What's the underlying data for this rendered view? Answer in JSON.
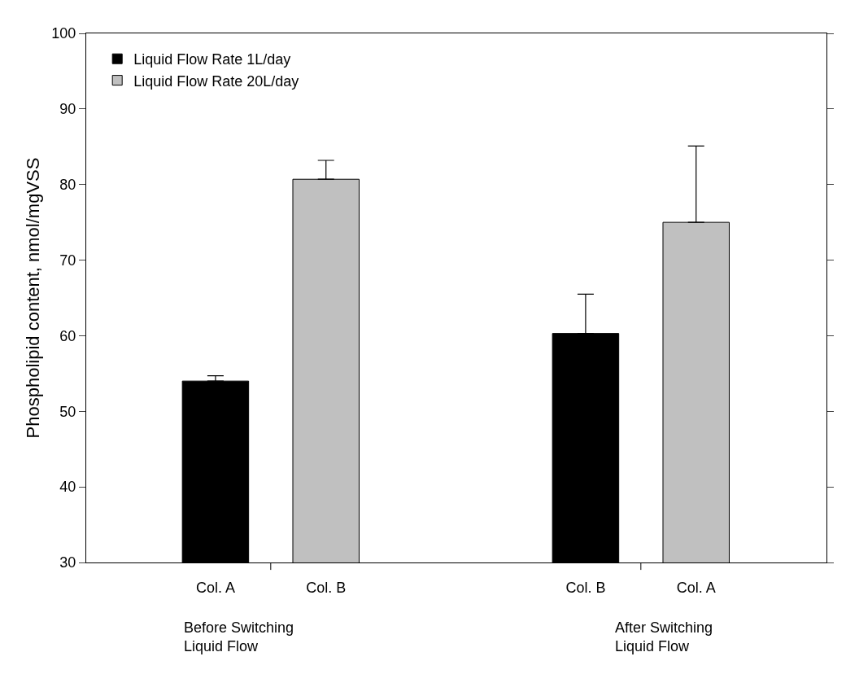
{
  "chart_data": {
    "type": "bar",
    "categories": [
      "Col. A",
      "Col. B",
      "Col. B",
      "Col. A"
    ],
    "series": [
      {
        "name": "Liquid Flow Rate 1L/day",
        "color": "#000000",
        "values": [
          54.0,
          null,
          60.3,
          null
        ],
        "errors": [
          [
            54.0,
            54.7
          ],
          null,
          [
            60.3,
            65.5
          ],
          null
        ]
      },
      {
        "name": "Liquid Flow Rate 20L/day",
        "color": "#c0c0c0",
        "values": [
          null,
          80.7,
          null,
          75.0
        ],
        "errors": [
          null,
          [
            80.7,
            83.2
          ],
          null,
          [
            75.0,
            85.1
          ]
        ]
      }
    ],
    "ylabel": "Phospholipid content, nmol/mgVSS",
    "ylim": [
      30,
      100
    ],
    "yticks": [
      30,
      40,
      50,
      60,
      70,
      80,
      90,
      100
    ],
    "annotations": [
      "Before Switching\nLiquid Flow",
      "After Switching\nLiquid Flow"
    ],
    "legend": "top left"
  }
}
